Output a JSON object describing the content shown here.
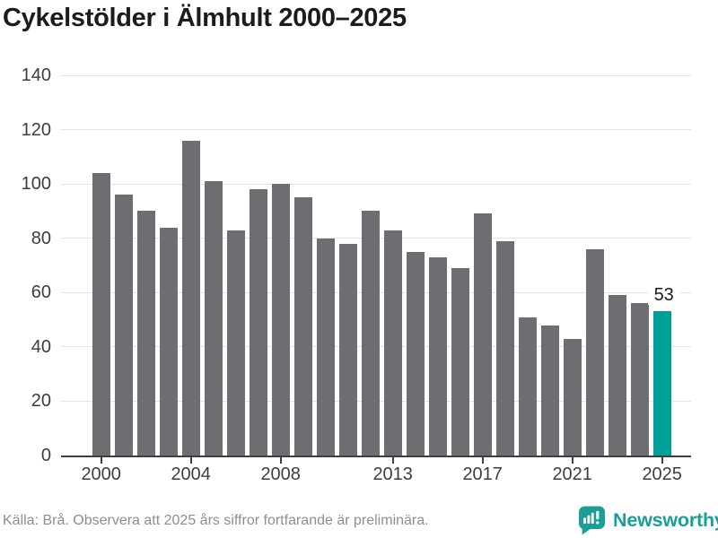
{
  "title": "Cykelstölder i Älmhult 2000–2025",
  "footer": {
    "source_note": "Källa: Brå. Observera att 2025 års siffror fortfarande är preliminära."
  },
  "branding": {
    "logo_text": "Newsworthy",
    "logo_icon": "newsworthy-speech-bubble-chart-icon",
    "logo_color": "#1b9e97"
  },
  "chart_data": {
    "type": "bar",
    "title": "Cykelstölder i Älmhult 2000–2025",
    "years": [
      2000,
      2001,
      2002,
      2003,
      2004,
      2005,
      2006,
      2007,
      2008,
      2009,
      2010,
      2011,
      2012,
      2013,
      2014,
      2015,
      2016,
      2017,
      2018,
      2019,
      2020,
      2021,
      2022,
      2023,
      2024,
      2025
    ],
    "values": [
      104,
      96,
      90,
      84,
      116,
      101,
      83,
      98,
      100,
      95,
      80,
      78,
      90,
      83,
      75,
      73,
      69,
      89,
      79,
      51,
      48,
      43,
      76,
      59,
      56,
      53
    ],
    "highlight_year": 2025,
    "highlight_value_label": "53",
    "bar_color": "#6e6d72",
    "highlight_color": "#00a099",
    "grid_color": "#e4e4e4",
    "axis_color": "#3f3f3f",
    "xlabel": "",
    "ylabel": "",
    "ylim": [
      0,
      140
    ],
    "yticks": [
      0,
      20,
      40,
      60,
      80,
      100,
      120,
      140
    ],
    "xticks": [
      2000,
      2004,
      2008,
      2013,
      2017,
      2021,
      2025
    ],
    "grid": "horizontal",
    "legend": "none"
  }
}
